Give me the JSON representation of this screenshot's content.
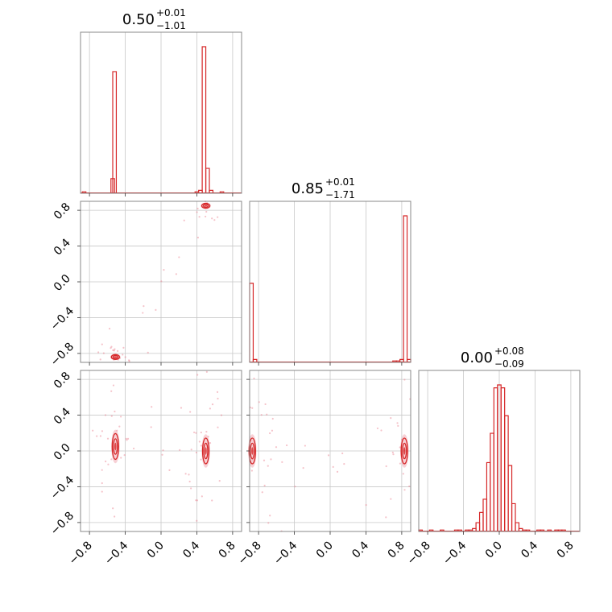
{
  "colors": {
    "accent": "#d62728",
    "scatter": "#e87a8a",
    "frame": "#888888",
    "grid": "#c8c8c8"
  },
  "chart_data": {
    "type": "corner",
    "grid": true,
    "ticks": [
      "−0.8",
      "−0.4",
      "0.0",
      "0.4",
      "0.8"
    ],
    "tick_values": [
      -0.8,
      -0.4,
      0.0,
      0.4,
      0.8
    ],
    "range": [
      -0.9,
      0.9
    ],
    "params": [
      {
        "title_value": "0.50",
        "title_plus": "+0.01",
        "title_minus": "−1.01"
      },
      {
        "title_value": "0.85",
        "title_plus": "+0.01",
        "title_minus": "−1.71"
      },
      {
        "title_value": "0.00",
        "title_plus": "+0.08",
        "title_minus": "−0.09"
      }
    ],
    "histograms": [
      {
        "param": 0,
        "bin_width": 0.04,
        "bins": [
          {
            "x": -0.88,
            "v": 0.01
          },
          {
            "x": -0.56,
            "v": 0.1
          },
          {
            "x": -0.54,
            "v": 0.83
          },
          {
            "x": 0.38,
            "v": 0.01
          },
          {
            "x": 0.42,
            "v": 0.02
          },
          {
            "x": 0.46,
            "v": 1.0
          },
          {
            "x": 0.5,
            "v": 0.17
          },
          {
            "x": 0.54,
            "v": 0.02
          },
          {
            "x": 0.66,
            "v": 0.01
          }
        ]
      },
      {
        "param": 1,
        "bin_width": 0.04,
        "bins": [
          {
            "x": -0.9,
            "v": 0.54
          },
          {
            "x": -0.86,
            "v": 0.02
          },
          {
            "x": 0.7,
            "v": 0.01
          },
          {
            "x": 0.74,
            "v": 0.01
          },
          {
            "x": 0.78,
            "v": 0.02
          },
          {
            "x": 0.82,
            "v": 1.0
          },
          {
            "x": 0.86,
            "v": 0.02
          }
        ]
      },
      {
        "param": 2,
        "bin_width": 0.04,
        "bins": [
          {
            "x": -0.9,
            "v": 0.01
          },
          {
            "x": -0.78,
            "v": 0.01
          },
          {
            "x": -0.66,
            "v": 0.01
          },
          {
            "x": -0.5,
            "v": 0.01
          },
          {
            "x": -0.46,
            "v": 0.01
          },
          {
            "x": -0.38,
            "v": 0.01
          },
          {
            "x": -0.34,
            "v": 0.01
          },
          {
            "x": -0.3,
            "v": 0.02
          },
          {
            "x": -0.26,
            "v": 0.06
          },
          {
            "x": -0.22,
            "v": 0.13
          },
          {
            "x": -0.18,
            "v": 0.22
          },
          {
            "x": -0.14,
            "v": 0.47
          },
          {
            "x": -0.1,
            "v": 0.67
          },
          {
            "x": -0.06,
            "v": 0.98
          },
          {
            "x": -0.02,
            "v": 1.0
          },
          {
            "x": 0.02,
            "v": 0.98
          },
          {
            "x": 0.06,
            "v": 0.79
          },
          {
            "x": 0.1,
            "v": 0.45
          },
          {
            "x": 0.14,
            "v": 0.19
          },
          {
            "x": 0.18,
            "v": 0.06
          },
          {
            "x": 0.22,
            "v": 0.02
          },
          {
            "x": 0.26,
            "v": 0.01
          },
          {
            "x": 0.3,
            "v": 0.01
          },
          {
            "x": 0.42,
            "v": 0.01
          },
          {
            "x": 0.46,
            "v": 0.01
          },
          {
            "x": 0.54,
            "v": 0.01
          },
          {
            "x": 0.62,
            "v": 0.01
          },
          {
            "x": 0.66,
            "v": 0.01
          },
          {
            "x": 0.7,
            "v": 0.01
          }
        ]
      }
    ],
    "pairs": [
      {
        "x_param": 0,
        "y_param": 1,
        "modes": [
          {
            "x": -0.51,
            "y": -0.84
          },
          {
            "x": 0.5,
            "y": 0.85
          }
        ]
      },
      {
        "x_param": 0,
        "y_param": 2,
        "modes": [
          {
            "x": -0.51,
            "y": 0.05
          },
          {
            "x": 0.5,
            "y": 0.0
          }
        ]
      },
      {
        "x_param": 1,
        "y_param": 2,
        "modes": [
          {
            "x": -0.87,
            "y": 0.0
          },
          {
            "x": 0.83,
            "y": 0.0
          }
        ]
      }
    ]
  }
}
